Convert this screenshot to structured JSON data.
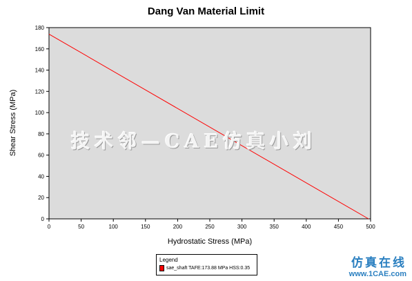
{
  "chart_data": {
    "type": "line",
    "title": "Dang Van Material Limit",
    "xlabel": "Hydrostatic Stress (MPa)",
    "ylabel": "Shear Stress (MPa)",
    "xlim": [
      0,
      500
    ],
    "ylim": [
      0,
      180
    ],
    "xticks": [
      0,
      50,
      100,
      150,
      200,
      250,
      300,
      350,
      400,
      450,
      500
    ],
    "yticks": [
      0,
      20,
      40,
      60,
      80,
      100,
      120,
      140,
      160,
      180
    ],
    "grid": false,
    "plot_background": "#dcdcdc",
    "series": [
      {
        "name": "sae_shaft TAFE:173.88 MPa  HSS:0.35",
        "color": "#ff0000",
        "x": [
          0,
          496.8
        ],
        "y": [
          173.88,
          0
        ]
      }
    ],
    "legend": {
      "title": "Legend",
      "placement": "bottom-center"
    }
  },
  "watermark_text": "技术邻—CAE仿真小刘",
  "brand": {
    "cn": "仿真在线",
    "url": "www.1CAE.com"
  }
}
